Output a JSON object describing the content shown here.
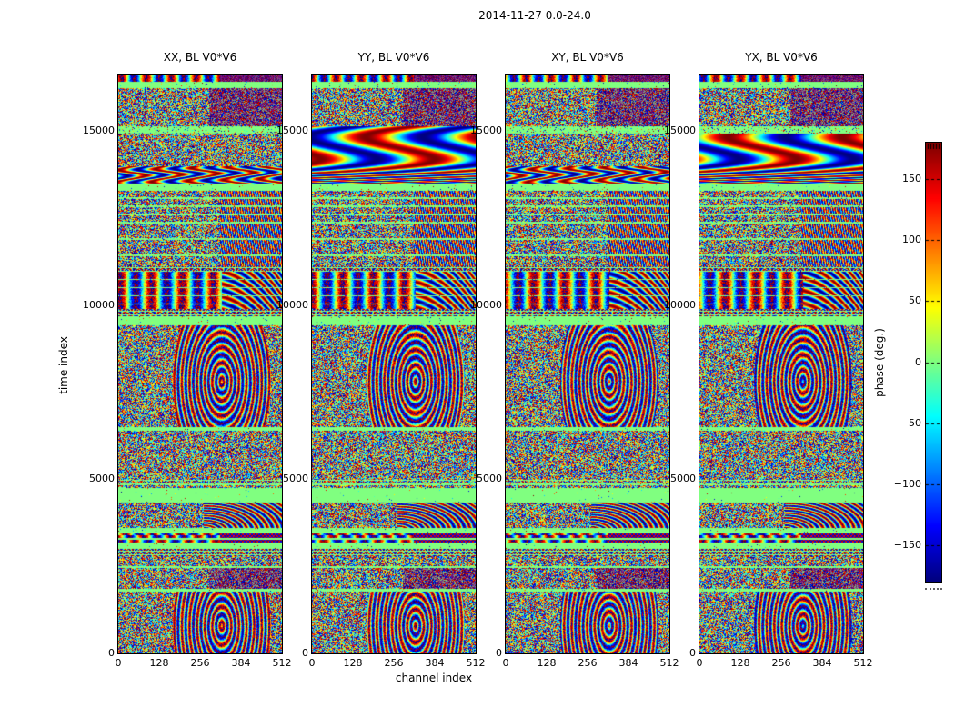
{
  "figure": {
    "title": "2014-11-27 0.0-24.0",
    "xlabel": "channel index",
    "ylabel": "time index"
  },
  "colorbar": {
    "label": "phase (deg.)"
  },
  "chart_data": {
    "type": "heatmap",
    "title": "2014-11-27 0.0-24.0",
    "xlabel": "channel index",
    "ylabel": "time index",
    "panels": [
      {
        "title": "XX, BL V0*V6"
      },
      {
        "title": "YY, BL V0*V6"
      },
      {
        "title": "XY, BL V0*V6"
      },
      {
        "title": "YX, BL V0*V6"
      }
    ],
    "x_range": [
      0,
      512
    ],
    "y_range": [
      0,
      16630
    ],
    "x_ticks": [
      0,
      128,
      256,
      384,
      512
    ],
    "y_ticks": [
      0,
      5000,
      10000,
      15000
    ],
    "grid": false,
    "colormap": "jet",
    "value_label": "phase (deg.)",
    "value_range": [
      -180,
      180
    ],
    "colorbar_ticks": [
      "150",
      "100",
      "50",
      "0",
      "−50",
      "−100",
      "−150"
    ],
    "colorbar_tick_values": [
      150,
      100,
      50,
      0,
      -50,
      -100,
      -150
    ],
    "note": "Four waterfall plots of interferometric visibility phase (deg, jet colormap) vs channel index (x) and time index (y) for polarizations XX/YY/XY/YX of baseline V0*V6; content is banded pseudo-random phase noise with flagged flat-green rows, smooth fringe bands near t≈13800, bright vertical fringe bars near t≈10000-11000, and arc/stripe RFI features near t≈3600-4200.",
    "texture_bands": [
      {
        "y0": 0.0,
        "y1": 0.011,
        "type": "topstripe"
      },
      {
        "y0": 0.011,
        "y1": 0.022,
        "type": "green"
      },
      {
        "y0": 0.022,
        "y1": 0.089,
        "type": "noise",
        "dither_right": true
      },
      {
        "y0": 0.089,
        "y1": 0.102,
        "type": "green",
        "speckle": 0.15
      },
      {
        "y0": 0.102,
        "y1": 0.158,
        "type": "noise"
      },
      {
        "y0": 0.158,
        "y1": 0.188,
        "type": "swirl"
      },
      {
        "y0": 0.188,
        "y1": 0.198,
        "type": "green"
      },
      {
        "y0": 0.198,
        "y1": 0.257,
        "type": "noise",
        "vstripe_right": true,
        "green_every": 9
      },
      {
        "y0": 0.257,
        "y1": 0.33,
        "type": "noise",
        "vstripe_right": true,
        "green_every": 18
      },
      {
        "y0": 0.33,
        "y1": 0.339,
        "type": "hlines"
      },
      {
        "y0": 0.339,
        "y1": 0.405,
        "type": "vbars"
      },
      {
        "y0": 0.405,
        "y1": 0.417,
        "type": "hlines"
      },
      {
        "y0": 0.417,
        "y1": 0.433,
        "type": "green"
      },
      {
        "y0": 0.433,
        "y1": 0.609,
        "type": "noise",
        "wave_patch": true
      },
      {
        "y0": 0.609,
        "y1": 0.614,
        "type": "green"
      },
      {
        "y0": 0.614,
        "y1": 0.7,
        "type": "noise"
      },
      {
        "y0": 0.7,
        "y1": 0.713,
        "type": "noise",
        "green_every": 5
      },
      {
        "y0": 0.713,
        "y1": 0.738,
        "type": "green",
        "speckle": 0.01
      },
      {
        "y0": 0.738,
        "y1": 0.782,
        "type": "arcs"
      },
      {
        "y0": 0.782,
        "y1": 0.79,
        "type": "green"
      },
      {
        "y0": 0.79,
        "y1": 0.808,
        "type": "stripeblob"
      },
      {
        "y0": 0.808,
        "y1": 0.819,
        "type": "green"
      },
      {
        "y0": 0.819,
        "y1": 0.832,
        "type": "hlines"
      },
      {
        "y0": 0.832,
        "y1": 0.848,
        "type": "noise"
      },
      {
        "y0": 0.848,
        "y1": 0.852,
        "type": "green"
      },
      {
        "y0": 0.852,
        "y1": 0.888,
        "type": "noise",
        "dither_right": true
      },
      {
        "y0": 0.888,
        "y1": 0.893,
        "type": "green"
      },
      {
        "y0": 0.893,
        "y1": 1.0,
        "type": "noise",
        "wave_patch": true
      }
    ],
    "panel_overrides": [
      {
        "panel": 1,
        "y0": 0.089,
        "y1": 0.188,
        "type": "moire"
      },
      {
        "panel": 3,
        "y0": 0.102,
        "y1": 0.188,
        "type": "moire"
      }
    ]
  }
}
